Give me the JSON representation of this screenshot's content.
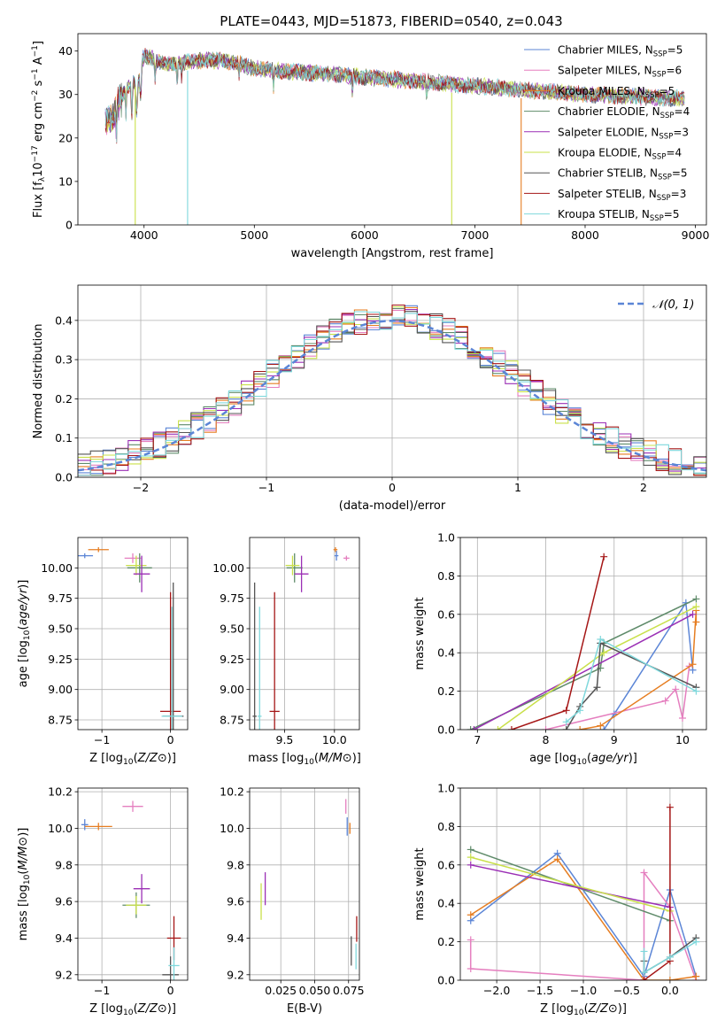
{
  "title": "PLATE=0443, MJD=51873, FIBERID=0540, z=0.043",
  "colors": {
    "Chabrier MILES": "#5b85d6",
    "Salpeter MILES": "#e57fbf",
    "Kroupa MILES": "#e67e22",
    "Chabrier ELODIE": "#5f8b6a",
    "Salpeter ELODIE": "#9b2fb5",
    "Kroupa ELODIE": "#c9e04a",
    "Chabrier STELIB": "#555555",
    "Salpeter STELIB": "#a51616",
    "Kroupa STELIB": "#7fd8dc",
    "gauss": "#5b85d6"
  },
  "chart_data": [
    {
      "type": "line",
      "name": "spectrum",
      "xlabel": "wavelength [Angstrom, rest frame]",
      "ylabel": "Flux [f_λ 10^-17 erg cm^-2 s^-1 A^-1]",
      "xlim": [
        3400,
        9100
      ],
      "ylim": [
        0,
        44
      ],
      "xticks": [
        4000,
        5000,
        6000,
        7000,
        8000,
        9000
      ],
      "yticks": [
        0,
        10,
        20,
        30,
        40
      ],
      "continuum": [
        [
          3650,
          24
        ],
        [
          3720,
          25
        ],
        [
          3800,
          30
        ],
        [
          3900,
          33
        ],
        [
          3950,
          35
        ],
        [
          4000,
          39
        ],
        [
          4100,
          38
        ],
        [
          4200,
          37
        ],
        [
          4400,
          37.5
        ],
        [
          4600,
          38
        ],
        [
          4800,
          37.5
        ],
        [
          5000,
          36
        ],
        [
          5200,
          35.5
        ],
        [
          5500,
          35
        ],
        [
          5800,
          34.5
        ],
        [
          6000,
          34
        ],
        [
          6500,
          33
        ],
        [
          7000,
          32
        ],
        [
          7500,
          31
        ],
        [
          8000,
          30
        ],
        [
          8500,
          29.5
        ],
        [
          8900,
          29
        ]
      ],
      "legend": [
        {
          "series": "Chabrier MILES",
          "label": "Chabrier MILES, N",
          "sub": "SSP",
          "n": "=5"
        },
        {
          "series": "Salpeter MILES",
          "label": "Salpeter MILES, N",
          "sub": "SSP",
          "n": "=6"
        },
        {
          "series": "Kroupa MILES",
          "label": "Kroupa MILES, N",
          "sub": "SSP",
          "n": "=5"
        },
        {
          "series": "Chabrier ELODIE",
          "label": "Chabrier ELODIE, N",
          "sub": "SSP",
          "n": "=4"
        },
        {
          "series": "Salpeter ELODIE",
          "label": "Salpeter ELODIE, N",
          "sub": "SSP",
          "n": "=3"
        },
        {
          "series": "Kroupa ELODIE",
          "label": "Kroupa ELODIE, N",
          "sub": "SSP",
          "n": "=4"
        },
        {
          "series": "Chabrier STELIB",
          "label": "Chabrier STELIB, N",
          "sub": "SSP",
          "n": "=5"
        },
        {
          "series": "Salpeter STELIB",
          "label": "Salpeter STELIB, N",
          "sub": "SSP",
          "n": "=3"
        },
        {
          "series": "Kroupa STELIB",
          "label": "Kroupa STELIB, N",
          "sub": "SSP",
          "n": "=5"
        }
      ],
      "drops": [
        {
          "series": "Kroupa ELODIE",
          "x": 3920
        },
        {
          "series": "Kroupa STELIB",
          "x": 4395
        },
        {
          "series": "Kroupa ELODIE",
          "x": 6790
        },
        {
          "series": "Kroupa MILES",
          "x": 7420
        }
      ]
    },
    {
      "type": "histogram",
      "name": "residuals",
      "xlabel": "(data-model)/error",
      "ylabel": "Normed distribution",
      "xlim": [
        -2.5,
        2.5
      ],
      "ylim": [
        0,
        0.49
      ],
      "xticks": [
        -2,
        -1,
        0,
        1,
        2
      ],
      "yticks": [
        0.0,
        0.1,
        0.2,
        0.3,
        0.4
      ],
      "gauss_label": "N(0,1)",
      "bin_width": 0.1
    },
    {
      "type": "scatter",
      "name": "age-vs-Z",
      "xlabel": "Z [log10(Z/Z⊙)]",
      "ylabel": "age [log10(age/yr)]",
      "xlim": [
        -1.35,
        0.25
      ],
      "ylim": [
        8.67,
        10.25
      ],
      "xticks": [
        -1,
        0
      ],
      "yticks": [
        8.75,
        9.0,
        9.25,
        9.5,
        9.75,
        10.0
      ],
      "points": [
        {
          "series": "Chabrier MILES",
          "x": -1.25,
          "y": 10.1,
          "xerr": 0.12,
          "yerr": 0.02
        },
        {
          "series": "Kroupa MILES",
          "x": -1.05,
          "y": 10.15,
          "xerr": 0.15,
          "yerr": 0.02
        },
        {
          "series": "Salpeter MILES",
          "x": -0.55,
          "y": 10.08,
          "xerr": 0.12,
          "yerr": 0.04
        },
        {
          "series": "Chabrier ELODIE",
          "x": -0.45,
          "y": 10.0,
          "xerr": 0.18,
          "yerr": 0.12
        },
        {
          "series": "Kroupa ELODIE",
          "x": -0.5,
          "y": 10.02,
          "xerr": 0.15,
          "yerr": 0.08
        },
        {
          "series": "Salpeter ELODIE",
          "x": -0.42,
          "y": 9.95,
          "xerr": 0.12,
          "yerr": 0.15
        },
        {
          "series": "Salpeter STELIB",
          "x": 0.0,
          "y": 8.82,
          "xerr": 0.15,
          "yerr": 0.98
        },
        {
          "series": "Chabrier STELIB",
          "x": 0.04,
          "y": 8.78,
          "xerr": 0.15,
          "yerr": 1.1
        },
        {
          "series": "Kroupa STELIB",
          "x": 0.02,
          "y": 8.78,
          "xerr": 0.15,
          "yerr": 0.9
        }
      ]
    },
    {
      "type": "scatter",
      "name": "age-vs-mass",
      "xlabel": "mass [log10(M/M⊙)]",
      "ylabel": "",
      "xlim": [
        9.15,
        10.25
      ],
      "ylim": [
        8.67,
        10.25
      ],
      "xticks": [
        9.5,
        10.0
      ],
      "yticks": [
        8.75,
        9.0,
        9.25,
        9.5,
        9.75,
        10.0
      ],
      "points": [
        {
          "series": "Chabrier STELIB",
          "x": 9.2,
          "y": 8.78,
          "xerr": 0.02,
          "yerr": 1.1
        },
        {
          "series": "Kroupa STELIB",
          "x": 9.25,
          "y": 8.78,
          "xerr": 0.02,
          "yerr": 0.9
        },
        {
          "series": "Salpeter STELIB",
          "x": 9.4,
          "y": 8.82,
          "xerr": 0.05,
          "yerr": 0.98
        },
        {
          "series": "Chabrier ELODIE",
          "x": 9.6,
          "y": 10.0,
          "xerr": 0.08,
          "yerr": 0.12
        },
        {
          "series": "Kroupa ELODIE",
          "x": 9.58,
          "y": 10.02,
          "xerr": 0.07,
          "yerr": 0.08
        },
        {
          "series": "Salpeter ELODIE",
          "x": 9.67,
          "y": 9.95,
          "xerr": 0.07,
          "yerr": 0.15
        },
        {
          "series": "Chabrier MILES",
          "x": 10.02,
          "y": 10.1,
          "xerr": 0.02,
          "yerr": 0.04
        },
        {
          "series": "Kroupa MILES",
          "x": 10.01,
          "y": 10.15,
          "xerr": 0.02,
          "yerr": 0.02
        },
        {
          "series": "Salpeter MILES",
          "x": 10.12,
          "y": 10.08,
          "xerr": 0.03,
          "yerr": 0.02
        }
      ]
    },
    {
      "type": "line",
      "name": "mass-weight-vs-age",
      "xlabel": "age [log10(age/yr)]",
      "ylabel": "mass weight",
      "xlim": [
        6.75,
        10.35
      ],
      "ylim": [
        0,
        1.0
      ],
      "xticks": [
        7,
        8,
        9,
        10
      ],
      "yticks": [
        0.0,
        0.2,
        0.4,
        0.6,
        0.8,
        1.0
      ],
      "series": [
        {
          "series": "Chabrier MILES",
          "points": [
            [
              8.85,
              0.0
            ],
            [
              9.0,
              0.08
            ],
            [
              10.05,
              0.66
            ],
            [
              10.15,
              0.31
            ]
          ]
        },
        {
          "series": "Salpeter MILES",
          "points": [
            [
              8.0,
              0.0
            ],
            [
              9.75,
              0.15
            ],
            [
              9.9,
              0.21
            ],
            [
              10.0,
              0.06
            ],
            [
              10.1,
              0.33
            ]
          ]
        },
        {
          "series": "Kroupa MILES",
          "points": [
            [
              8.5,
              0.0
            ],
            [
              8.8,
              0.02
            ],
            [
              10.15,
              0.34
            ],
            [
              10.2,
              0.62
            ],
            [
              10.2,
              0.56
            ]
          ]
        },
        {
          "series": "Chabrier ELODIE",
          "points": [
            [
              6.9,
              0.0
            ],
            [
              8.8,
              0.32
            ],
            [
              8.85,
              0.45
            ],
            [
              10.2,
              0.68
            ]
          ]
        },
        {
          "series": "Salpeter ELODIE",
          "points": [
            [
              6.95,
              0.0
            ],
            [
              10.15,
              0.6
            ]
          ]
        },
        {
          "series": "Kroupa ELODIE",
          "points": [
            [
              7.3,
              0.0
            ],
            [
              8.85,
              0.4
            ],
            [
              10.2,
              0.64
            ]
          ]
        },
        {
          "series": "Chabrier STELIB",
          "points": [
            [
              8.3,
              0.0
            ],
            [
              8.5,
              0.12
            ],
            [
              8.75,
              0.22
            ],
            [
              8.8,
              0.45
            ],
            [
              10.2,
              0.22
            ]
          ]
        },
        {
          "series": "Salpeter STELIB",
          "points": [
            [
              7.5,
              0.0
            ],
            [
              8.3,
              0.1
            ],
            [
              8.85,
              0.9
            ]
          ]
        },
        {
          "series": "Kroupa STELIB",
          "points": [
            [
              8.3,
              0.04
            ],
            [
              8.5,
              0.1
            ],
            [
              8.8,
              0.47
            ],
            [
              10.2,
              0.2
            ]
          ]
        }
      ]
    },
    {
      "type": "scatter",
      "name": "mass-vs-Z",
      "xlabel": "Z [log10(Z/Z⊙)]",
      "ylabel": "mass [log10(M/M⊙)]",
      "xlim": [
        -1.35,
        0.25
      ],
      "ylim": [
        9.17,
        10.22
      ],
      "xticks": [
        -1,
        0
      ],
      "yticks": [
        9.2,
        9.4,
        9.6,
        9.8,
        10.0,
        10.2
      ],
      "points": [
        {
          "series": "Chabrier MILES",
          "x": -1.25,
          "y": 10.02,
          "xerr": 0.05,
          "yerr": 0.03
        },
        {
          "series": "Kroupa MILES",
          "x": -1.05,
          "y": 10.01,
          "xerr": 0.2,
          "yerr": 0.02
        },
        {
          "series": "Salpeter MILES",
          "x": -0.55,
          "y": 10.12,
          "xerr": 0.15,
          "yerr": 0.03
        },
        {
          "series": "Chabrier ELODIE",
          "x": -0.5,
          "y": 9.58,
          "xerr": 0.2,
          "yerr": 0.07
        },
        {
          "series": "Kroupa ELODIE",
          "x": -0.5,
          "y": 9.58,
          "xerr": 0.15,
          "yerr": 0.05
        },
        {
          "series": "Salpeter ELODIE",
          "x": -0.42,
          "y": 9.67,
          "xerr": 0.12,
          "yerr": 0.08
        },
        {
          "series": "Salpeter STELIB",
          "x": 0.05,
          "y": 9.4,
          "xerr": 0.1,
          "yerr": 0.12
        },
        {
          "series": "Chabrier STELIB",
          "x": 0.0,
          "y": 9.2,
          "xerr": 0.12,
          "yerr": 0.1
        },
        {
          "series": "Kroupa STELIB",
          "x": 0.05,
          "y": 9.25,
          "xerr": 0.08,
          "yerr": 0.1
        }
      ]
    },
    {
      "type": "scatter",
      "name": "mass-vs-EBV",
      "xlabel": "E(B-V)",
      "ylabel": "",
      "xlim": [
        0.002,
        0.083
      ],
      "ylim": [
        9.17,
        10.22
      ],
      "xticks": [
        0.025,
        0.05,
        0.075
      ],
      "xticklabels": [
        "0.025",
        "0.050",
        "0.075"
      ],
      "yticks": [
        9.2,
        9.4,
        9.6,
        9.8,
        10.0,
        10.2
      ],
      "points": [
        {
          "series": "Kroupa ELODIE",
          "x": 0.0105,
          "y": 9.6,
          "xerr": 0.0,
          "yerr": 0.1
        },
        {
          "series": "Salpeter ELODIE",
          "x": 0.0135,
          "y": 9.67,
          "xerr": 0.0,
          "yerr": 0.09
        },
        {
          "series": "Salpeter MILES",
          "x": 0.073,
          "y": 10.12,
          "xerr": 0.0,
          "yerr": 0.04
        },
        {
          "series": "Chabrier MILES",
          "x": 0.074,
          "y": 10.01,
          "xerr": 0.0,
          "yerr": 0.05
        },
        {
          "series": "Kroupa MILES",
          "x": 0.076,
          "y": 10.0,
          "xerr": 0.0,
          "yerr": 0.03
        },
        {
          "series": "Chabrier STELIB",
          "x": 0.077,
          "y": 9.33,
          "xerr": 0.0,
          "yerr": 0.08
        },
        {
          "series": "Salpeter STELIB",
          "x": 0.081,
          "y": 9.45,
          "xerr": 0.0,
          "yerr": 0.07
        },
        {
          "series": "Kroupa STELIB",
          "x": 0.0805,
          "y": 9.3,
          "xerr": 0.0,
          "yerr": 0.07
        }
      ]
    },
    {
      "type": "line",
      "name": "mass-weight-vs-Z",
      "xlabel": "Z [log10(Z/Z⊙)]",
      "ylabel": "mass weight",
      "xlim": [
        -2.42,
        0.42
      ],
      "ylim": [
        0,
        1.0
      ],
      "xticks": [
        -2.0,
        -1.5,
        -1.0,
        -0.5,
        0.0
      ],
      "xticklabels": [
        "−2.0",
        "−1.5",
        "−1.0",
        "−0.5",
        "0.0"
      ],
      "yticks": [
        0.0,
        0.2,
        0.4,
        0.6,
        0.8,
        1.0
      ],
      "series": [
        {
          "series": "Chabrier MILES",
          "points": [
            [
              -2.3,
              0.31
            ],
            [
              -1.3,
              0.66
            ],
            [
              -0.3,
              0.02
            ],
            [
              0.0,
              0.47
            ],
            [
              0.3,
              0.02
            ]
          ]
        },
        {
          "series": "Salpeter MILES",
          "points": [
            [
              -2.3,
              0.21
            ],
            [
              -2.3,
              0.06
            ],
            [
              -0.3,
              0.0
            ],
            [
              -0.3,
              0.56
            ],
            [
              0.0,
              0.38
            ],
            [
              0.3,
              0.0
            ]
          ]
        },
        {
          "series": "Kroupa MILES",
          "points": [
            [
              -2.3,
              0.34
            ],
            [
              -1.3,
              0.63
            ],
            [
              -0.3,
              0.0
            ],
            [
              0.0,
              0.0
            ],
            [
              0.3,
              0.02
            ]
          ]
        },
        {
          "series": "Chabrier ELODIE",
          "points": [
            [
              -2.3,
              0.68
            ],
            [
              0.0,
              0.31
            ]
          ]
        },
        {
          "series": "Salpeter ELODIE",
          "points": [
            [
              -2.3,
              0.6
            ],
            [
              0.0,
              0.38
            ]
          ]
        },
        {
          "series": "Kroupa ELODIE",
          "points": [
            [
              -2.3,
              0.64
            ],
            [
              0.0,
              0.36
            ]
          ]
        },
        {
          "series": "Chabrier STELIB",
          "points": [
            [
              -0.3,
              0.1
            ],
            [
              -0.3,
              0.04
            ],
            [
              0.0,
              0.12
            ],
            [
              0.3,
              0.22
            ]
          ]
        },
        {
          "series": "Salpeter STELIB",
          "points": [
            [
              -0.3,
              0.0
            ],
            [
              0.0,
              0.1
            ],
            [
              0.0,
              0.9
            ]
          ]
        },
        {
          "series": "Kroupa STELIB",
          "points": [
            [
              -0.3,
              0.15
            ],
            [
              -0.3,
              0.04
            ],
            [
              0.0,
              0.12
            ],
            [
              0.3,
              0.2
            ]
          ]
        }
      ]
    }
  ]
}
